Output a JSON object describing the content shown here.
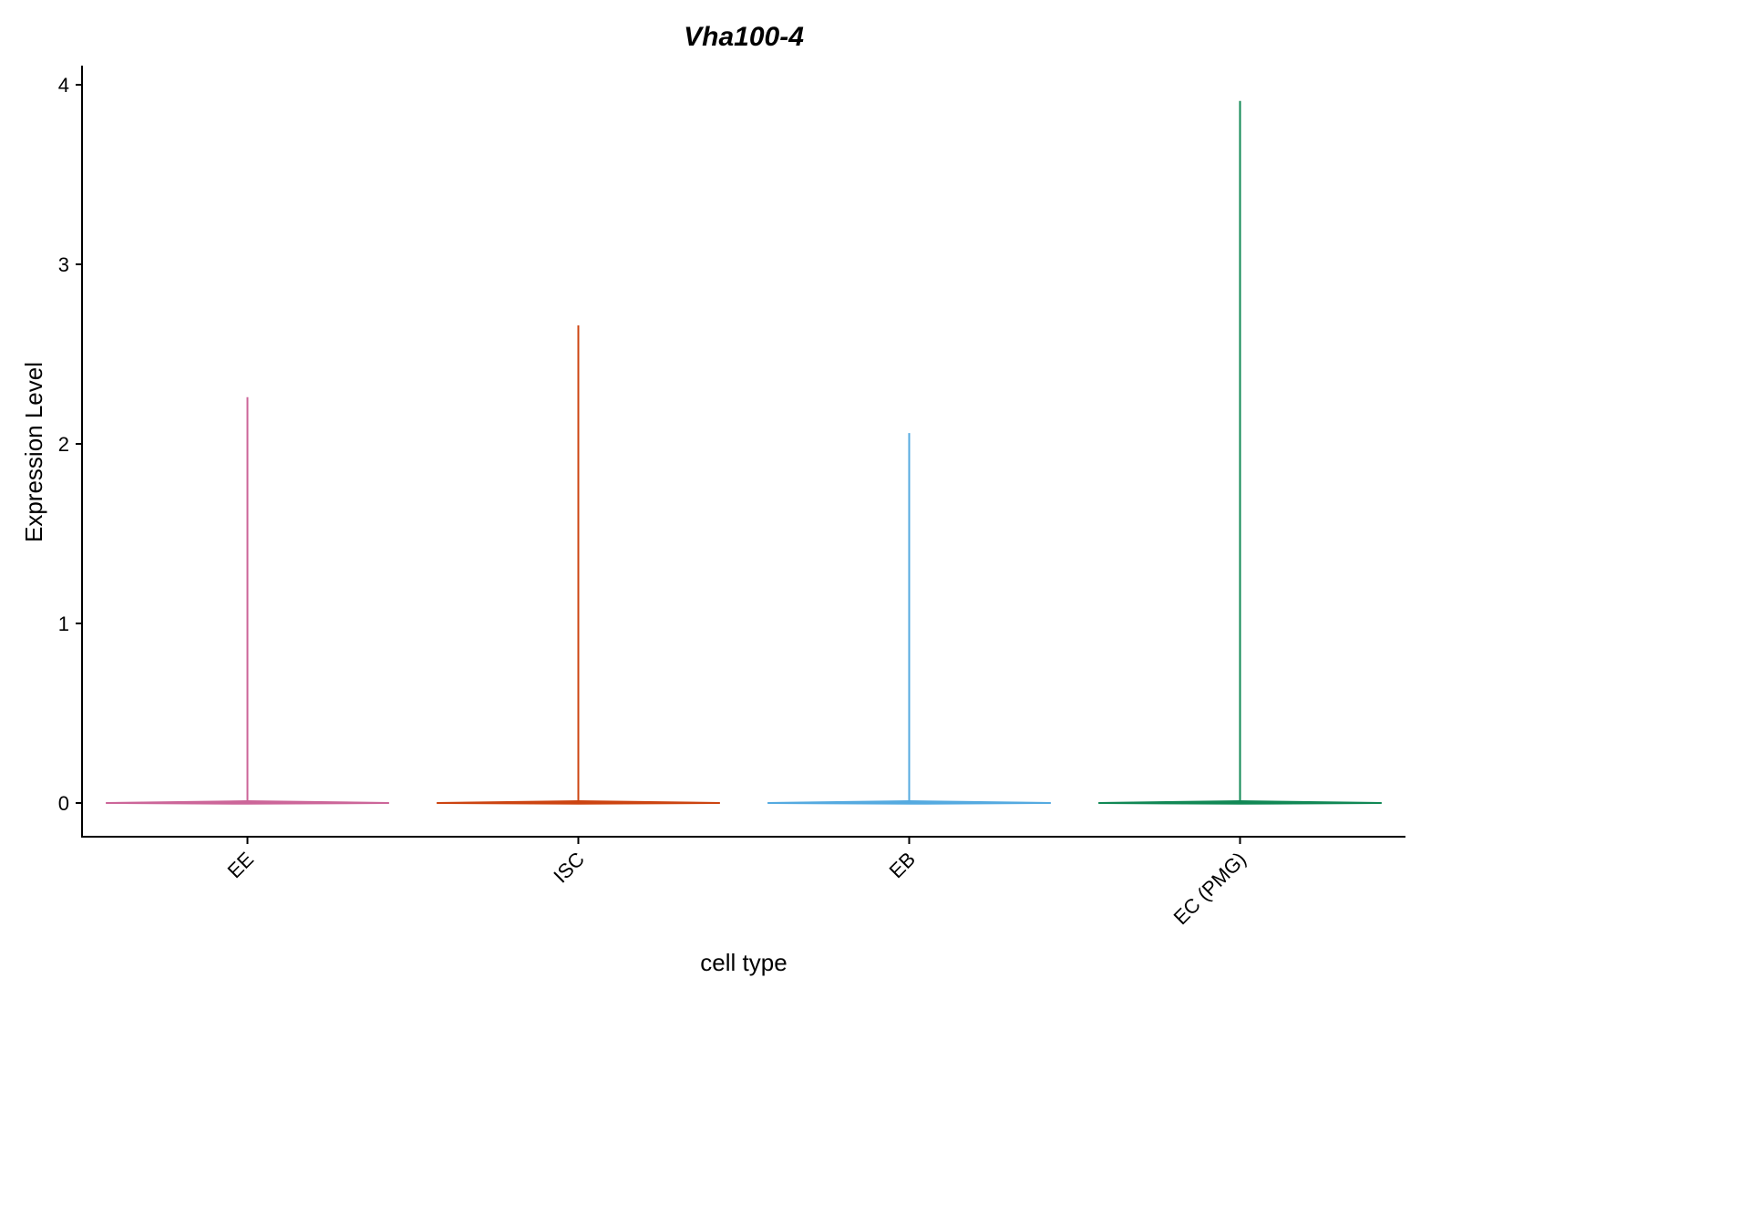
{
  "chart_data": {
    "type": "violin",
    "title": "Vha100-4",
    "xlabel": "cell type",
    "ylabel": "Expression Level",
    "ylim": [
      -0.19,
      4.1
    ],
    "yticks": [
      0,
      1,
      2,
      3,
      4
    ],
    "categories": [
      "EE",
      "ISC",
      "EB",
      "EC (PMG)"
    ],
    "series": [
      {
        "values": [
          0,
          2.26
        ],
        "color": "#CC6699"
      },
      {
        "values": [
          0,
          2.66
        ],
        "color": "#CC4411"
      },
      {
        "values": [
          0,
          2.06
        ],
        "color": "#55AAE0"
      },
      {
        "values": [
          0,
          3.91
        ],
        "color": "#118855"
      }
    ],
    "grid": false,
    "legend": "none"
  }
}
